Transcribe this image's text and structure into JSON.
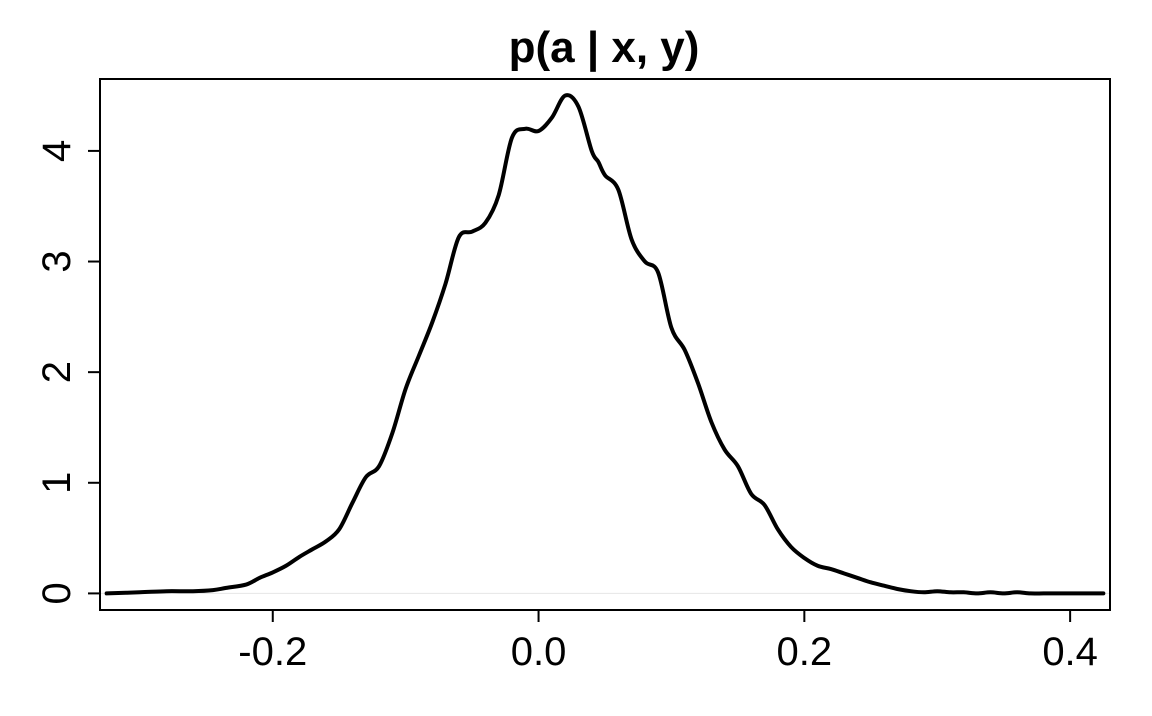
{
  "chart_data": {
    "type": "line",
    "title": "p(a | x, y)",
    "xlabel": "",
    "ylabel": "",
    "xlim": [
      -0.33,
      0.43
    ],
    "ylim": [
      -0.15,
      4.65
    ],
    "x_ticks": [
      -0.2,
      0.0,
      0.2,
      0.4
    ],
    "x_tick_labels": [
      "-0.2",
      "0.0",
      "0.2",
      "0.4"
    ],
    "y_ticks": [
      0,
      1,
      2,
      3,
      4
    ],
    "y_tick_labels": [
      "0",
      "1",
      "2",
      "3",
      "4"
    ],
    "grid": false,
    "baseline": 0,
    "series": [
      {
        "color": "#000000",
        "x": [
          -0.325,
          -0.3,
          -0.28,
          -0.26,
          -0.245,
          -0.235,
          -0.22,
          -0.21,
          -0.2,
          -0.19,
          -0.18,
          -0.17,
          -0.16,
          -0.15,
          -0.14,
          -0.13,
          -0.12,
          -0.11,
          -0.1,
          -0.09,
          -0.08,
          -0.07,
          -0.06,
          -0.05,
          -0.04,
          -0.03,
          -0.02,
          -0.01,
          0.0,
          0.01,
          0.02,
          0.03,
          0.04,
          0.045,
          0.05,
          0.06,
          0.07,
          0.08,
          0.09,
          0.1,
          0.11,
          0.12,
          0.13,
          0.14,
          0.15,
          0.16,
          0.17,
          0.18,
          0.19,
          0.2,
          0.21,
          0.22,
          0.23,
          0.24,
          0.25,
          0.26,
          0.27,
          0.28,
          0.29,
          0.3,
          0.31,
          0.32,
          0.33,
          0.34,
          0.35,
          0.36,
          0.37,
          0.38,
          0.39,
          0.4,
          0.41,
          0.425
        ],
        "y": [
          0.0,
          0.01,
          0.02,
          0.02,
          0.03,
          0.05,
          0.08,
          0.14,
          0.19,
          0.25,
          0.33,
          0.4,
          0.47,
          0.58,
          0.82,
          1.05,
          1.15,
          1.45,
          1.85,
          2.15,
          2.45,
          2.8,
          3.22,
          3.27,
          3.35,
          3.6,
          4.12,
          4.2,
          4.18,
          4.3,
          4.5,
          4.4,
          4.0,
          3.9,
          3.78,
          3.65,
          3.2,
          3.0,
          2.9,
          2.4,
          2.2,
          1.9,
          1.55,
          1.3,
          1.15,
          0.9,
          0.8,
          0.58,
          0.42,
          0.32,
          0.25,
          0.22,
          0.18,
          0.14,
          0.1,
          0.07,
          0.04,
          0.02,
          0.01,
          0.02,
          0.01,
          0.01,
          0.0,
          0.01,
          0.0,
          0.01,
          0.0,
          0.0,
          0.0,
          0.0,
          0.0,
          0.0
        ]
      }
    ]
  }
}
